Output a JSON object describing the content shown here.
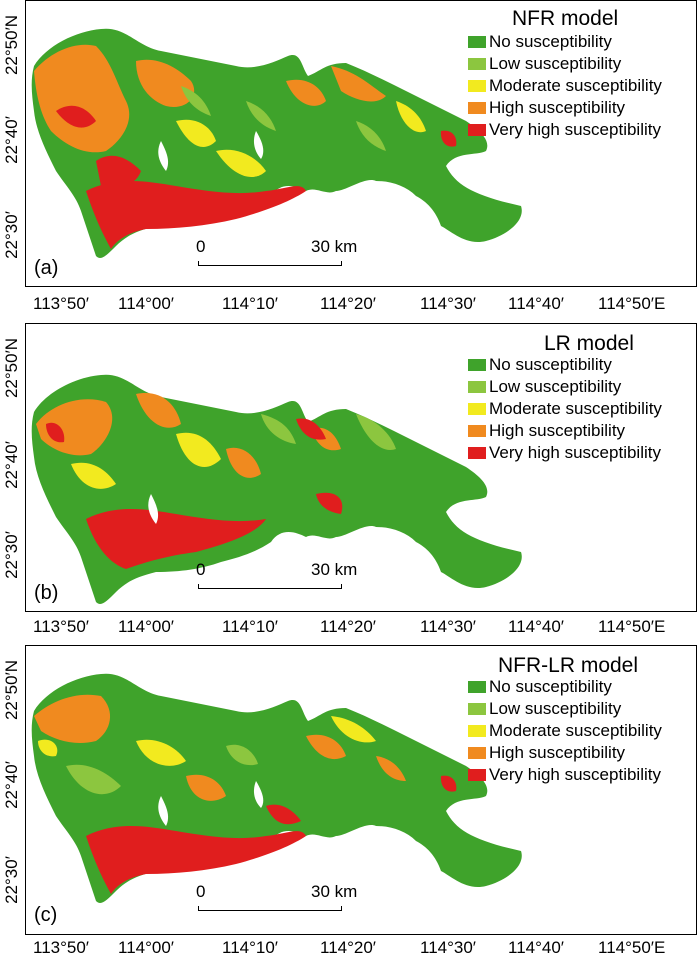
{
  "legend_colors": {
    "no": "#3fa32b",
    "low": "#8cc63f",
    "moderate": "#f2ea1f",
    "high": "#f08a1f",
    "very_high": "#e01e1e"
  },
  "legend_labels": {
    "no": "No susceptibility",
    "low": "Low susceptibility",
    "moderate": "Moderate susceptibility",
    "high": "High susceptibility",
    "very_high": "Very high susceptibility"
  },
  "scale": {
    "zero": "0",
    "max": "30 km"
  },
  "lat_labels": [
    "22°30′",
    "22°40′",
    "22°50′N"
  ],
  "lon_labels": [
    "113°50′",
    "114°00′",
    "114°10′",
    "114°20′",
    "114°30′",
    "114°40′",
    "114°50′E"
  ],
  "panels": [
    {
      "letter": "(a)",
      "title": "NFR model"
    },
    {
      "letter": "(b)",
      "title": "LR model"
    },
    {
      "letter": "(c)",
      "title": "NFR-LR model"
    }
  ]
}
